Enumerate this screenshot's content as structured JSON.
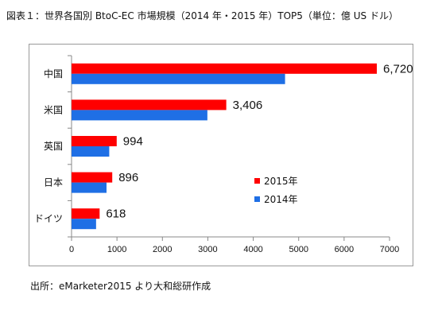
{
  "figure": {
    "title": "図表１：世界各国別 BtoC-EC 市場規模（2014 年・2015 年）TOP5（単位：億 US ドル）",
    "source": "出所：eMarketer2015 より大和総研作成"
  },
  "chart_data": {
    "type": "bar",
    "orientation": "horizontal",
    "categories": [
      "中国",
      "米国",
      "英国",
      "日本",
      "ドイツ"
    ],
    "series": [
      {
        "name": "2015年",
        "values": [
          6720,
          3406,
          994,
          896,
          618
        ],
        "color": "#ff0000",
        "data_labels": [
          "6,720",
          "3,406",
          "994",
          "896",
          "618"
        ]
      },
      {
        "name": "2014年",
        "values": [
          4700,
          2990,
          830,
          770,
          540
        ],
        "color": "#1f6fe5"
      }
    ],
    "xlim": [
      0,
      7000
    ],
    "xticks": [
      0,
      1000,
      2000,
      3000,
      4000,
      5000,
      6000,
      7000
    ],
    "gridlines": false,
    "legend_position": "right"
  }
}
